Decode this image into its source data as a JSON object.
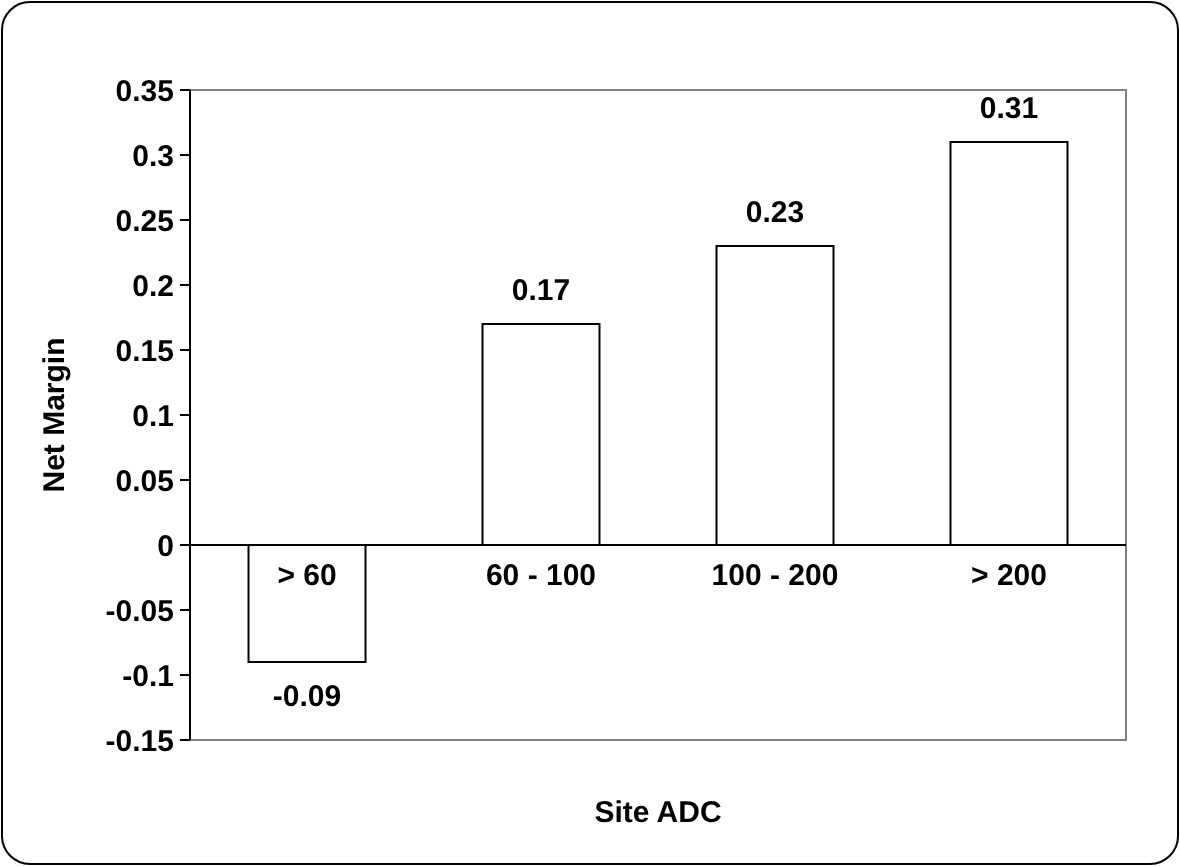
{
  "chart_data": {
    "type": "bar",
    "xlabel": "Site ADC",
    "ylabel": "Net Margin",
    "categories": [
      "> 60",
      "60 - 100",
      "100 - 200",
      "> 200"
    ],
    "values": [
      -0.09,
      0.17,
      0.23,
      0.31
    ],
    "color": "#ffffff",
    "ylim": [
      -0.15,
      0.35
    ],
    "yticks": [
      -0.15,
      -0.1,
      -0.05,
      0,
      0.05,
      0.1,
      0.15,
      0.2,
      0.25,
      0.3,
      0.35
    ],
    "data_labels": true
  }
}
